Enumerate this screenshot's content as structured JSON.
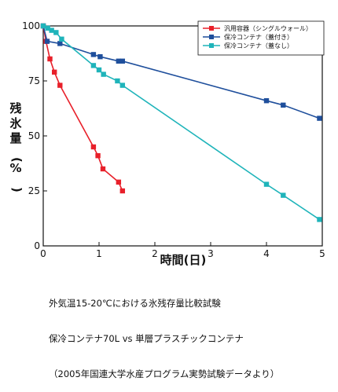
{
  "chart_data": {
    "type": "line",
    "xlabel": "時間(日)",
    "ylabel": "残氷量(%)",
    "xlim": [
      0,
      5
    ],
    "ylim": [
      0,
      100
    ],
    "xticks": [
      "0",
      "1",
      "2",
      "3",
      "4",
      "5"
    ],
    "yticks": [
      "0",
      "25",
      "50",
      "75",
      "100"
    ],
    "grid": false,
    "legend_position": "top-right",
    "series": [
      {
        "name": "汎用容器（シングルウォール）",
        "color": "#e8202a",
        "marker": "square",
        "points": [
          [
            0,
            100
          ],
          [
            0.05,
            93
          ],
          [
            0.12,
            85
          ],
          [
            0.2,
            79
          ],
          [
            0.3,
            73
          ],
          [
            0.9,
            45
          ],
          [
            0.98,
            41
          ],
          [
            1.07,
            35
          ],
          [
            1.35,
            29
          ],
          [
            1.42,
            25
          ]
        ]
      },
      {
        "name": "保冷コンテナ（蓋付き）",
        "color": "#1f4f9c",
        "marker": "square",
        "points": [
          [
            0,
            100
          ],
          [
            0.07,
            93
          ],
          [
            0.3,
            92
          ],
          [
            0.9,
            87
          ],
          [
            1.02,
            86
          ],
          [
            1.35,
            84
          ],
          [
            1.42,
            84
          ],
          [
            4.0,
            66
          ],
          [
            4.3,
            64
          ],
          [
            4.95,
            58
          ]
        ]
      },
      {
        "name": "保冷コンテナ（蓋なし）",
        "color": "#1fb4ba",
        "marker": "square",
        "points": [
          [
            0,
            100
          ],
          [
            0.08,
            99
          ],
          [
            0.15,
            98
          ],
          [
            0.23,
            97
          ],
          [
            0.33,
            94
          ],
          [
            0.9,
            82
          ],
          [
            1.0,
            80
          ],
          [
            1.08,
            78
          ],
          [
            1.33,
            75
          ],
          [
            1.42,
            73
          ],
          [
            4.0,
            28
          ],
          [
            4.3,
            23
          ],
          [
            4.95,
            12
          ]
        ]
      }
    ]
  },
  "caption": {
    "line1": "外気温15-20℃における氷残存量比較試験",
    "line2": "保冷コンテナ70L vs 単層プラスチックコンテナ",
    "line3": "（2005年国連大学水産プログラム実勢試験データより）"
  }
}
